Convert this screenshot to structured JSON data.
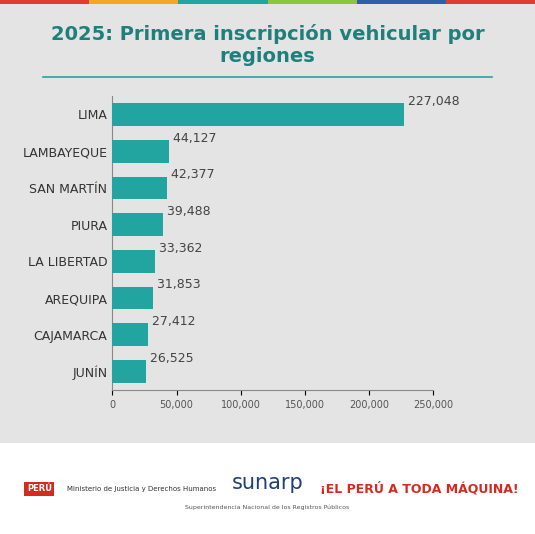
{
  "chart_data": {
    "type": "bar",
    "orientation": "horizontal",
    "title": "2025: Primera inscripción vehicular por regiones",
    "categories": [
      "LIMA",
      "LAMBAYEQUE",
      "SAN MARTÍN",
      "PIURA",
      "LA LIBERTAD",
      "AREQUIPA",
      "CAJAMARCA",
      "JUNÍN"
    ],
    "values": [
      227048,
      44127,
      42377,
      39488,
      33362,
      31853,
      27412,
      26525
    ],
    "value_labels": [
      "227,048",
      "44,127",
      "42,377",
      "39,488",
      "33,362",
      "31,853",
      "27,412",
      "26,525"
    ],
    "data_labels": true,
    "color": "#22a5a1",
    "xlim": [
      0,
      250000
    ],
    "xticks": [
      0,
      {
        "value": 50000,
        "label": "50,000"
      },
      {
        "value": 100000,
        "label": "100,000"
      },
      {
        "value": 150000,
        "label": "150,000"
      },
      {
        "value": 200000,
        "label": "200,000"
      },
      {
        "value": 250000,
        "label": "250,000"
      }
    ],
    "grid": false,
    "annotations": [
      "PERÚ",
      "Ministerio de Justicia y Derechos Humanos",
      "sunarp",
      "Superintendencia Nacional de los Registros Públicos",
      "¡EL PERÚ A TODA MÁQUINA!"
    ]
  }
}
